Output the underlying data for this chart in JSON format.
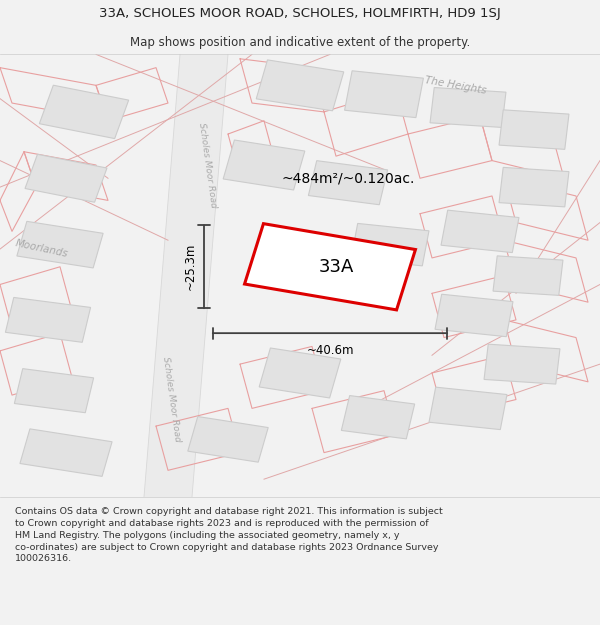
{
  "title_line1": "33A, SCHOLES MOOR ROAD, SCHOLES, HOLMFIRTH, HD9 1SJ",
  "title_line2": "Map shows position and indicative extent of the property.",
  "footer_text": "Contains OS data © Crown copyright and database right 2021. This information is subject to Crown copyright and database rights 2023 and is reproduced with the permission of HM Land Registry. The polygons (including the associated geometry, namely x, y co-ordinates) are subject to Crown copyright and database rights 2023 Ordnance Survey 100026316.",
  "area_label": "~484m²/~0.120ac.",
  "width_label": "~40.6m",
  "height_label": "~25.3m",
  "plot_label": "33A",
  "bg_color": "#f2f2f2",
  "map_bg": "#ffffff",
  "building_fill": "#e2e2e2",
  "building_edge": "#cccccc",
  "road_fill": "#ebebeb",
  "plot_outline_color": "#dd0000",
  "dim_line_color": "#404040",
  "label_gray": "#aaaaaa",
  "pink_line": "#e8a0a0",
  "title_fontsize": 9.5,
  "subtitle_fontsize": 8.5,
  "footer_fontsize": 6.8
}
